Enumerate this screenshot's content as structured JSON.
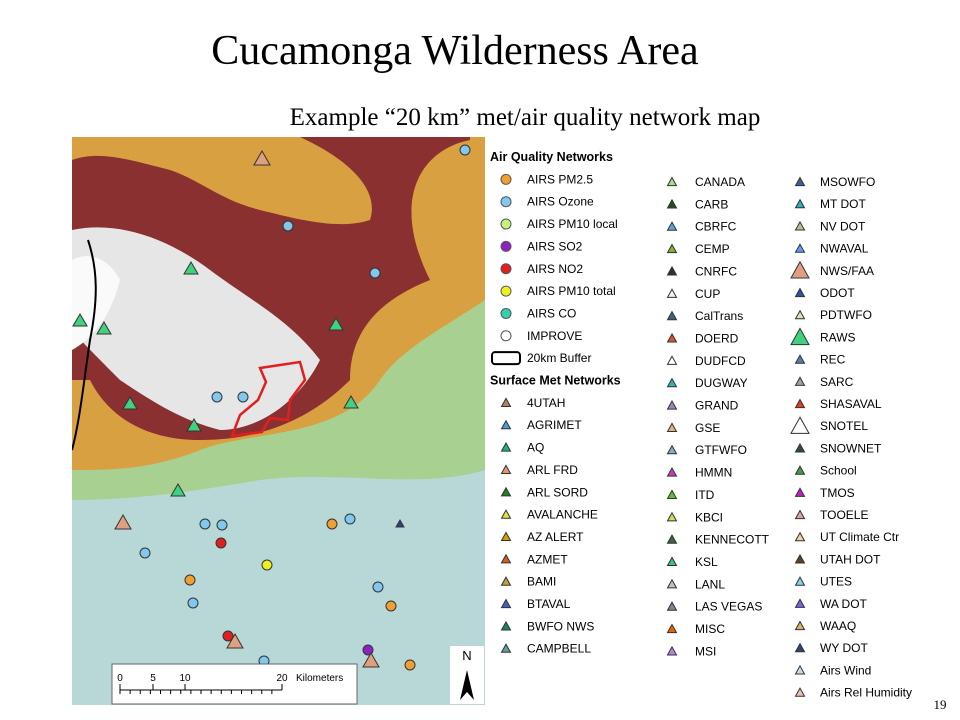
{
  "title": "Cucamonga Wilderness Area",
  "subtitle": "Example “20 km” met/air quality network map",
  "scale_bar": {
    "labels": [
      "0",
      "5",
      "10",
      "20"
    ],
    "unit": "Kilometers"
  },
  "north": "N",
  "page_number": "19",
  "legend": {
    "columns": [
      [
        {
          "kind": "heading",
          "label": "Air Quality Networks"
        },
        {
          "label": "AIRS PM2.5",
          "shape": "circle",
          "color": "#f0a030"
        },
        {
          "label": "AIRS Ozone",
          "shape": "circle",
          "color": "#80c8f0"
        },
        {
          "label": "AIRS PM10 local",
          "shape": "circle",
          "color": "#c8f080"
        },
        {
          "label": "AIRS SO2",
          "shape": "circle",
          "color": "#9020c0"
        },
        {
          "label": "AIRS NO2",
          "shape": "circle",
          "color": "#e02020"
        },
        {
          "label": "AIRS PM10 total",
          "shape": "circle",
          "color": "#f0f020"
        },
        {
          "label": "AIRS CO",
          "shape": "circle",
          "color": "#30d0b0"
        },
        {
          "label": "IMPROVE",
          "shape": "circle",
          "color": "#ffffff"
        },
        {
          "label": "20km Buffer",
          "shape": "box",
          "color": "#000000"
        },
        {
          "kind": "heading",
          "label": "Surface Met Networks"
        },
        {
          "label": "4UTAH",
          "shape": "tri",
          "color": "#b08060"
        },
        {
          "label": "AGRIMET",
          "shape": "tri",
          "color": "#40a0e0"
        },
        {
          "label": "AQ",
          "shape": "tri",
          "color": "#20b080"
        },
        {
          "label": "ARL FRD",
          "shape": "tri",
          "color": "#f09070"
        },
        {
          "label": "ARL SORD",
          "shape": "tri",
          "color": "#208020"
        },
        {
          "label": "AVALANCHE",
          "shape": "tri",
          "color": "#e0e040"
        },
        {
          "label": "AZ ALERT",
          "shape": "tri",
          "color": "#d0a000"
        },
        {
          "label": "AZMET",
          "shape": "tri",
          "color": "#d06020"
        },
        {
          "label": "BAMI",
          "shape": "tri",
          "color": "#c0a030"
        },
        {
          "label": "BTAVAL",
          "shape": "tri",
          "color": "#4060c0"
        },
        {
          "label": "BWFO NWS",
          "shape": "tri",
          "color": "#208060"
        },
        {
          "label": "CAMPBELL",
          "shape": "tri",
          "color": "#60a0a0"
        }
      ],
      [
        {
          "label": "CANADA",
          "shape": "tri",
          "color": "#a0e080"
        },
        {
          "label": "CARB",
          "shape": "tri",
          "color": "#205020"
        },
        {
          "label": "CBRFC",
          "shape": "tri",
          "color": "#60a0e0"
        },
        {
          "label": "CEMP",
          "shape": "tri",
          "color": "#80b040"
        },
        {
          "label": "CNRFC",
          "shape": "tri",
          "color": "#303030"
        },
        {
          "label": "CUP",
          "shape": "tri",
          "color": "#f0f0f0"
        },
        {
          "label": "CalTrans",
          "shape": "tri",
          "color": "#406080"
        },
        {
          "label": "DOERD",
          "shape": "tri",
          "color": "#e05030"
        },
        {
          "label": "DUDFCD",
          "shape": "tri",
          "color": "#ffffff"
        },
        {
          "label": "DUGWAY",
          "shape": "tri",
          "color": "#30b0b0"
        },
        {
          "label": "GRAND",
          "shape": "tri",
          "color": "#a080c0"
        },
        {
          "label": "GSE",
          "shape": "tri",
          "color": "#e0b080"
        },
        {
          "label": "GTFWFO",
          "shape": "tri",
          "color": "#80b0d0"
        },
        {
          "label": "HMMN",
          "shape": "tri",
          "color": "#c040c0"
        },
        {
          "label": "ITD",
          "shape": "tri",
          "color": "#60c030"
        },
        {
          "label": "KBCI",
          "shape": "tri",
          "color": "#c0e060"
        },
        {
          "label": "KENNECOTT",
          "shape": "tri",
          "color": "#406040"
        },
        {
          "label": "KSL",
          "shape": "tri",
          "color": "#40c080"
        },
        {
          "label": "LANL",
          "shape": "tri",
          "color": "#c0c0c0"
        },
        {
          "label": "LAS VEGAS",
          "shape": "tri",
          "color": "#8080a0"
        },
        {
          "label": "MISC",
          "shape": "tri",
          "color": "#f06000"
        },
        {
          "label": "MSI",
          "shape": "tri",
          "color": "#c080e0"
        }
      ],
      [
        {
          "label": "MSOWFO",
          "shape": "tri",
          "color": "#4060a0"
        },
        {
          "label": "MT DOT",
          "shape": "tri",
          "color": "#30b0c0"
        },
        {
          "label": "NV DOT",
          "shape": "tri",
          "color": "#c0c080"
        },
        {
          "label": "NWAVAL",
          "shape": "tri",
          "color": "#60a0f0"
        },
        {
          "label": "NWS/FAA",
          "shape": "bigtri",
          "color": "#e0a080"
        },
        {
          "label": "ODOT",
          "shape": "tri",
          "color": "#3050a0"
        },
        {
          "label": "PDTWFO",
          "shape": "tri",
          "color": "#e0e0c0"
        },
        {
          "label": "RAWS",
          "shape": "bigtri",
          "color": "#40d080"
        },
        {
          "label": "REC",
          "shape": "tri",
          "color": "#5080b0"
        },
        {
          "label": "SARC",
          "shape": "tri",
          "color": "#a0a0a0"
        },
        {
          "label": "SHASAVAL",
          "shape": "tri",
          "color": "#e04020"
        },
        {
          "label": "SNOTEL",
          "shape": "bigtri",
          "color": "#ffffff"
        },
        {
          "label": "SNOWNET",
          "shape": "tri",
          "color": "#305030"
        },
        {
          "label": "School",
          "shape": "tri",
          "color": "#40a040"
        },
        {
          "label": "TMOS",
          "shape": "tri",
          "color": "#c020c0"
        },
        {
          "label": "TOOELE",
          "shape": "tri",
          "color": "#e0a0a0"
        },
        {
          "label": "UT Climate Ctr",
          "shape": "tri",
          "color": "#f0d0a0"
        },
        {
          "label": "UTAH DOT",
          "shape": "tri",
          "color": "#604020"
        },
        {
          "label": "UTES",
          "shape": "tri",
          "color": "#80d0f0"
        },
        {
          "label": "WA DOT",
          "shape": "tri",
          "color": "#8060e0"
        },
        {
          "label": "WAAQ",
          "shape": "tri",
          "color": "#e0b060"
        },
        {
          "label": "WY DOT",
          "shape": "tri",
          "color": "#304080"
        },
        {
          "label": "Airs Wind",
          "shape": "tri",
          "color": "#c0e0f0"
        },
        {
          "label": "Airs Rel Humidity",
          "shape": "tri",
          "color": "#f0c0b0"
        }
      ]
    ]
  }
}
